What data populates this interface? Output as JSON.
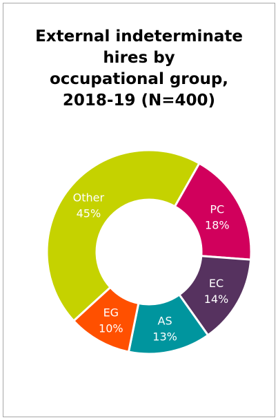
{
  "chart_data": {
    "type": "pie",
    "variant": "donut",
    "title_lines": [
      "External indeterminate",
      "hires by",
      "occupational group,",
      "2018-19 (N=400)"
    ],
    "slices": [
      {
        "label": "Other",
        "value": 45,
        "value_label": "45%",
        "color": "#c5d200"
      },
      {
        "label": "PC",
        "value": 18,
        "value_label": "18%",
        "color": "#d1005c"
      },
      {
        "label": "EC",
        "value": 14,
        "value_label": "14%",
        "color": "#56325f"
      },
      {
        "label": "AS",
        "value": 13,
        "value_label": "13%",
        "color": "#00959e"
      },
      {
        "label": "EG",
        "value": 10,
        "value_label": "10%",
        "color": "#ff5000"
      }
    ],
    "legend": "none",
    "labels_on_slices": true
  }
}
